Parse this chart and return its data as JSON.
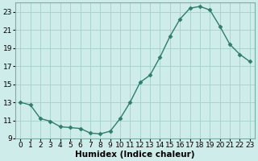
{
  "x": [
    0,
    1,
    2,
    3,
    4,
    5,
    6,
    7,
    8,
    9,
    10,
    11,
    12,
    13,
    14,
    15,
    16,
    17,
    18,
    19,
    20,
    21,
    22,
    23
  ],
  "y": [
    13.0,
    12.7,
    11.2,
    10.9,
    10.3,
    10.2,
    10.1,
    9.6,
    9.5,
    9.8,
    11.2,
    13.0,
    15.2,
    16.0,
    18.0,
    20.3,
    22.2,
    23.4,
    23.6,
    23.2,
    21.4,
    19.4,
    18.3,
    17.5
  ],
  "line_color": "#2e7d6e",
  "marker": "D",
  "marker_size": 2.5,
  "background_color": "#ceecea",
  "grid_color": "#aad4d0",
  "xlabel": "Humidex (Indice chaleur)",
  "xlim": [
    -0.5,
    23.5
  ],
  "ylim": [
    9,
    24
  ],
  "yticks": [
    9,
    11,
    13,
    15,
    17,
    19,
    21,
    23
  ],
  "xticks": [
    0,
    1,
    2,
    3,
    4,
    5,
    6,
    7,
    8,
    9,
    10,
    11,
    12,
    13,
    14,
    15,
    16,
    17,
    18,
    19,
    20,
    21,
    22,
    23
  ],
  "xlabel_fontsize": 7.5,
  "tick_fontsize": 6.5
}
